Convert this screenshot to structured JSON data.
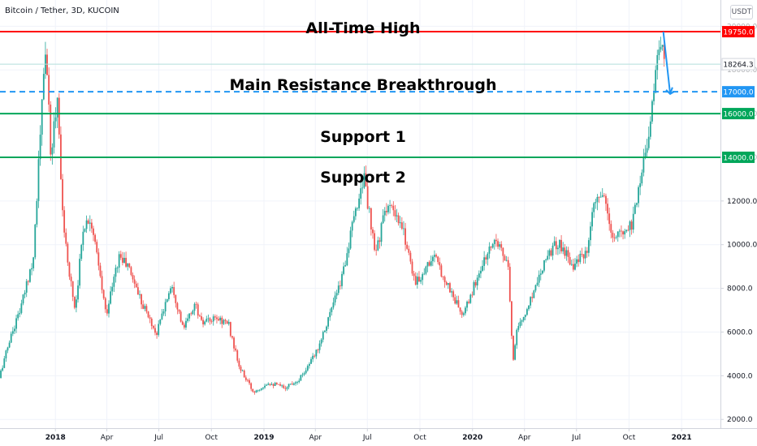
{
  "header": {
    "symbol": "Bitcoin / Tether, 3D, KUCOIN",
    "currency": "USDT"
  },
  "colors": {
    "up": "#26a69a",
    "down": "#ef5350",
    "resistance": "#ff0000",
    "support": "#00a65a",
    "breakout": "#2196f3",
    "projection": "#2196f3"
  },
  "chart_data": {
    "type": "candlestick",
    "ylim": [
      1600,
      21200
    ],
    "y_ticks": [
      "20000.0",
      "18000.0",
      "16000.0",
      "14000.0",
      "12000.0",
      "10000.0",
      "8000.0",
      "6000.0",
      "4000.0",
      "2000.0"
    ],
    "y_tick_values": [
      20000,
      18000,
      16000,
      14000,
      12000,
      10000,
      8000,
      6000,
      4000,
      2000
    ],
    "x_range": [
      "2017-09-26",
      "2021-03-10"
    ],
    "x_ticks": [
      {
        "date": "2018-01-01",
        "label": "2018",
        "bold": true
      },
      {
        "date": "2018-04-01",
        "label": "Apr"
      },
      {
        "date": "2018-07-01",
        "label": "Jul"
      },
      {
        "date": "2018-10-01",
        "label": "Oct"
      },
      {
        "date": "2019-01-01",
        "label": "2019",
        "bold": true
      },
      {
        "date": "2019-04-01",
        "label": "Apr"
      },
      {
        "date": "2019-07-01",
        "label": "Jul"
      },
      {
        "date": "2019-10-01",
        "label": "Oct"
      },
      {
        "date": "2020-01-01",
        "label": "2020",
        "bold": true
      },
      {
        "date": "2020-04-01",
        "label": "Apr"
      },
      {
        "date": "2020-07-01",
        "label": "Jul"
      },
      {
        "date": "2020-10-01",
        "label": "Oct"
      },
      {
        "date": "2021-01-01",
        "label": "2021",
        "bold": true
      }
    ],
    "price_path": [
      [
        "2017-09-26",
        3900
      ],
      [
        "2017-10-15",
        5700
      ],
      [
        "2017-11-05",
        7300
      ],
      [
        "2017-11-25",
        9500
      ],
      [
        "2017-12-08",
        15500
      ],
      [
        "2017-12-17",
        19300
      ],
      [
        "2017-12-25",
        14000
      ],
      [
        "2018-01-06",
        16800
      ],
      [
        "2018-01-17",
        10500
      ],
      [
        "2018-02-06",
        7000
      ],
      [
        "2018-02-20",
        10800
      ],
      [
        "2018-03-05",
        11300
      ],
      [
        "2018-04-01",
        6800
      ],
      [
        "2018-04-24",
        9500
      ],
      [
        "2018-05-10",
        9000
      ],
      [
        "2018-06-01",
        7500
      ],
      [
        "2018-06-28",
        5900
      ],
      [
        "2018-07-25",
        8300
      ],
      [
        "2018-08-14",
        6100
      ],
      [
        "2018-09-04",
        7300
      ],
      [
        "2018-09-15",
        6400
      ],
      [
        "2018-10-15",
        6600
      ],
      [
        "2018-11-01",
        6400
      ],
      [
        "2018-11-20",
        4400
      ],
      [
        "2018-12-15",
        3250
      ],
      [
        "2019-01-10",
        3700
      ],
      [
        "2019-02-07",
        3450
      ],
      [
        "2019-03-05",
        3850
      ],
      [
        "2019-04-02",
        4950
      ],
      [
        "2019-05-15",
        8100
      ],
      [
        "2019-06-26",
        13200
      ],
      [
        "2019-07-16",
        9500
      ],
      [
        "2019-08-06",
        11900
      ],
      [
        "2019-09-05",
        10500
      ],
      [
        "2019-09-25",
        8200
      ],
      [
        "2019-10-26",
        9500
      ],
      [
        "2019-12-17",
        6700
      ],
      [
        "2020-01-15",
        8800
      ],
      [
        "2020-02-13",
        10400
      ],
      [
        "2020-03-05",
        8900
      ],
      [
        "2020-03-13",
        4600
      ],
      [
        "2020-03-20",
        6200
      ],
      [
        "2020-04-01",
        6600
      ],
      [
        "2020-05-10",
        9500
      ],
      [
        "2020-06-01",
        10100
      ],
      [
        "2020-06-27",
        9100
      ],
      [
        "2020-07-22",
        9600
      ],
      [
        "2020-08-02",
        11800
      ],
      [
        "2020-08-17",
        12300
      ],
      [
        "2020-09-05",
        10200
      ],
      [
        "2020-10-08",
        11000
      ],
      [
        "2020-10-21",
        12900
      ],
      [
        "2020-11-07",
        15300
      ],
      [
        "2020-11-18",
        18000
      ],
      [
        "2020-11-30",
        19300
      ],
      [
        "2020-12-02",
        19000
      ]
    ],
    "levels": [
      {
        "label": "All-Time High",
        "value": 19750,
        "tag": "19750.0",
        "style": "solid",
        "color": "#ff0000"
      },
      {
        "label": "Main Resistance Breakthrough",
        "value": 17000,
        "tag": "17000.0",
        "style": "dashed",
        "color": "#2196f3"
      },
      {
        "label": "Support 1",
        "value": 16000,
        "tag": "16000.0",
        "style": "solid",
        "color": "#00a65a"
      },
      {
        "label": "Support 2",
        "value": 14000,
        "tag": "14000.0",
        "style": "solid",
        "color": "#00a65a"
      }
    ],
    "last_price": {
      "value": 18264.3,
      "tag": "18264.3"
    },
    "projection": [
      [
        "2020-11-30",
        19750
      ],
      [
        "2020-12-12",
        16900
      ],
      [
        "2020-12-16",
        17200
      ]
    ]
  }
}
